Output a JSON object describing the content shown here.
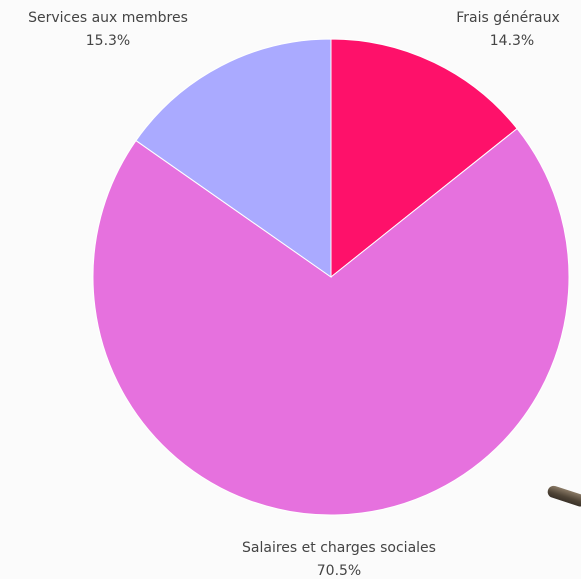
{
  "chart_data": {
    "type": "pie",
    "slices": [
      {
        "label": "Frais généraux",
        "value": 14.3,
        "display": "14.3%",
        "color": "#fe116a"
      },
      {
        "label": "Salaires et charges sociales",
        "value": 70.5,
        "display": "70.5%",
        "color": "#e671de"
      },
      {
        "label": "Services aux membres",
        "value": 15.3,
        "display": "15.3%",
        "color": "#aaaaff"
      }
    ],
    "start": "12 o'clock",
    "direction": "clockwise"
  }
}
